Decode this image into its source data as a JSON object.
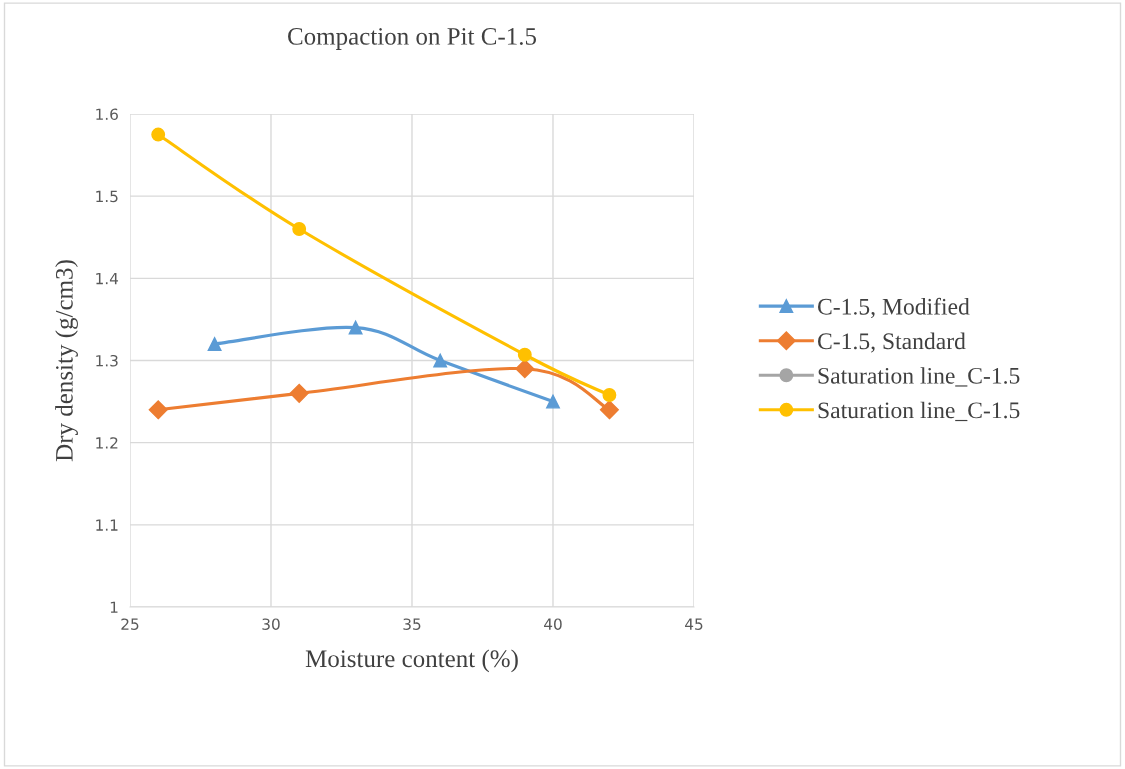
{
  "chart_data": {
    "type": "line",
    "title": "Compaction on Pit C-1.5",
    "xlabel": "Moisture content (%)",
    "ylabel": "Dry density (g/cm3)",
    "xlim": [
      25,
      45
    ],
    "xticks": [
      25,
      30,
      35,
      40,
      45
    ],
    "ylim": [
      1,
      1.6
    ],
    "yticks": [
      1,
      1.1,
      1.2,
      1.3,
      1.4,
      1.5,
      1.6
    ],
    "grid": true,
    "legend": "right",
    "series": [
      {
        "name": "C-1.5, Modified",
        "color": "#5b9bd5",
        "marker": "triangle",
        "x": [
          28,
          33,
          36,
          40
        ],
        "values": [
          1.32,
          1.34,
          1.3,
          1.25
        ]
      },
      {
        "name": "C-1.5, Standard",
        "color": "#ed7d31",
        "marker": "diamond",
        "x": [
          26,
          31,
          39,
          42
        ],
        "values": [
          1.24,
          1.26,
          1.29,
          1.24
        ]
      },
      {
        "name": "Saturation line_C-1.5",
        "color": "#a5a5a5",
        "marker": "circle"
      },
      {
        "name": "Saturation line_C-1.5",
        "color": "#ffc000",
        "marker": "circle",
        "x": [
          26,
          31,
          39,
          42
        ],
        "values": [
          1.575,
          1.46,
          1.307,
          1.258
        ]
      }
    ]
  }
}
